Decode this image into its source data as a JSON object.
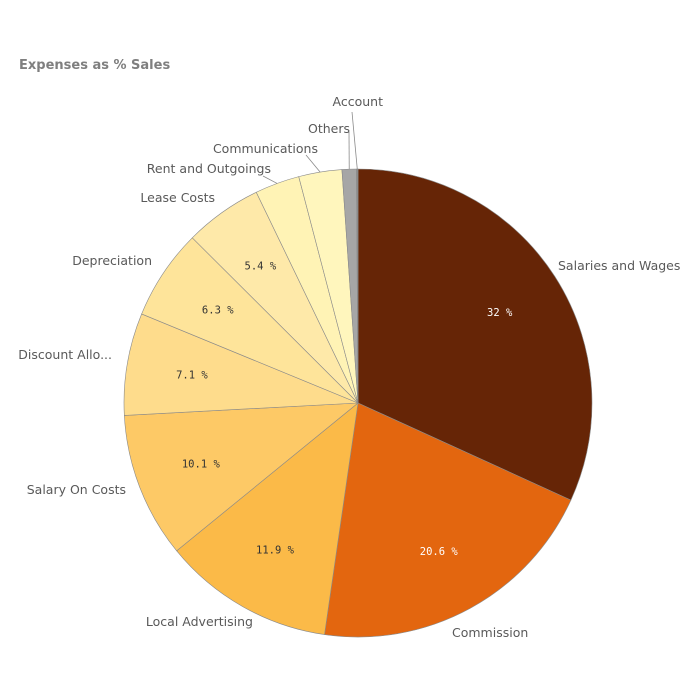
{
  "chart_data": {
    "type": "pie",
    "title": "Expenses as % Sales",
    "slices": [
      {
        "label": "Salaries and Wages",
        "value": 32,
        "value_label": "32 %",
        "color": "#662506"
      },
      {
        "label": "Commission",
        "value": 20.6,
        "value_label": "20.6 %",
        "color": "#e3660f"
      },
      {
        "label": "Local Advertising",
        "value": 11.9,
        "value_label": "11.9 %",
        "color": "#fbba48"
      },
      {
        "label": "Salary On Costs",
        "value": 10.1,
        "value_label": "10.1 %",
        "color": "#fdc966"
      },
      {
        "label": "Discount Allo...",
        "value": 7.1,
        "value_label": "7.1 %",
        "color": "#fedc8c"
      },
      {
        "label": "Depreciation",
        "value": 6.3,
        "value_label": "6.3 %",
        "color": "#fee49a"
      },
      {
        "label": "Lease Costs",
        "value": 5.4,
        "value_label": "5.4 %",
        "color": "#fee9a9"
      },
      {
        "label": "Rent and Outgoings",
        "value": 3.1,
        "value_label": "",
        "color": "#fff3b5"
      },
      {
        "label": "Communications",
        "value": 3.0,
        "value_label": "",
        "color": "#fff6bd"
      },
      {
        "label": "Others",
        "value": 1.0,
        "value_label": "",
        "color": "#a6a6a6"
      },
      {
        "label": "Account",
        "value": 0.1,
        "value_label": "",
        "color": "#8c8c8c"
      }
    ],
    "legend": "none",
    "start_angle": "12 o'clock, clockwise"
  }
}
